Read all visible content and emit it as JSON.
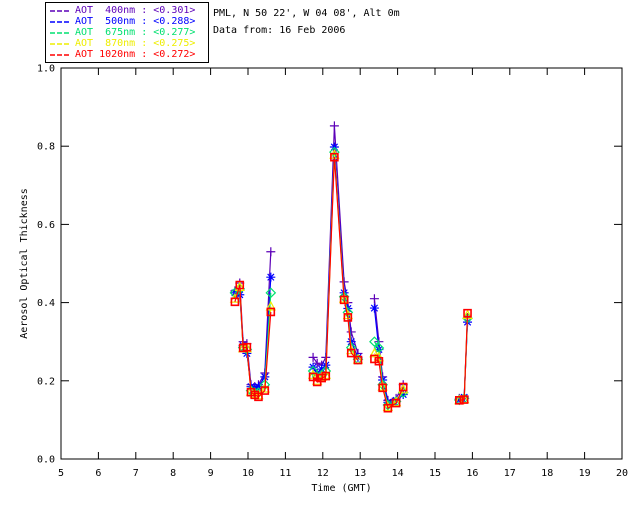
{
  "header": {
    "location": "PML, N 50 22', W 04 08', Alt 0m",
    "date": "Data from: 16 Feb 2006"
  },
  "legend": {
    "entries": [
      {
        "text": "AOT  400nm : <0.301>",
        "wavelength": "400nm",
        "mean": "<0.301>",
        "color": "#5c00b8"
      },
      {
        "text": "AOT  500nm : <0.288>",
        "wavelength": "500nm",
        "mean": "<0.288>",
        "color": "#0000ff"
      },
      {
        "text": "AOT  675nm : <0.277>",
        "wavelength": "675nm",
        "mean": "<0.277>",
        "color": "#00e070"
      },
      {
        "text": "AOT  870nm : <0.275>",
        "wavelength": "870nm",
        "mean": "<0.275>",
        "color": "#eeee00"
      },
      {
        "text": "AOT 1020nm : <0.272>",
        "wavelength": "1020nm",
        "mean": "<0.272>",
        "color": "#ff0000"
      }
    ]
  },
  "chart_data": {
    "type": "line",
    "title": "",
    "xlabel": "Time (GMT)",
    "ylabel": "Aerosol Optical Thickness",
    "xlim": [
      5,
      20
    ],
    "ylim": [
      0.0,
      1.0
    ],
    "x_ticks": [
      5,
      6,
      7,
      8,
      9,
      10,
      11,
      12,
      13,
      14,
      15,
      16,
      17,
      18,
      19,
      20
    ],
    "y_ticks": [
      0.0,
      0.2,
      0.4,
      0.6,
      0.8,
      1.0
    ],
    "grid": false,
    "legend_position": "outside-top-left",
    "x": [
      9.65,
      9.78,
      9.87,
      9.97,
      10.08,
      10.18,
      10.28,
      10.45,
      10.61,
      11.74,
      11.85,
      11.97,
      12.08,
      12.31,
      12.57,
      12.67,
      12.76,
      12.94,
      13.38,
      13.5,
      13.6,
      13.74,
      13.96,
      14.15,
      15.65,
      15.78,
      15.87
    ],
    "segments": [
      [
        0,
        8
      ],
      [
        9,
        17
      ],
      [
        18,
        23
      ],
      [
        24,
        26
      ]
    ],
    "series": [
      {
        "name": "AOT 400nm",
        "mean": 0.301,
        "color": "#5c00b8",
        "marker": "plus",
        "values": [
          0.43,
          0.45,
          0.3,
          0.295,
          0.19,
          0.185,
          0.19,
          0.22,
          0.53,
          0.26,
          0.245,
          0.24,
          0.26,
          0.852,
          0.453,
          0.4,
          0.325,
          0.27,
          0.41,
          0.3,
          0.21,
          0.15,
          0.155,
          0.19,
          0.155,
          0.16,
          0.36
        ]
      },
      {
        "name": "AOT 500nm",
        "mean": 0.288,
        "color": "#0000ff",
        "marker": "asterisk",
        "values": [
          0.425,
          0.42,
          0.29,
          0.27,
          0.185,
          0.18,
          0.185,
          0.21,
          0.465,
          0.235,
          0.22,
          0.23,
          0.24,
          0.798,
          0.425,
          0.385,
          0.3,
          0.26,
          0.386,
          0.28,
          0.202,
          0.145,
          0.15,
          0.165,
          0.152,
          0.158,
          0.35
        ]
      },
      {
        "name": "AOT 675nm",
        "mean": 0.277,
        "color": "#00e070",
        "marker": "diamond",
        "values": [
          0.425,
          0.435,
          0.285,
          0.28,
          0.175,
          0.17,
          0.17,
          0.19,
          0.425,
          0.225,
          0.21,
          0.215,
          0.225,
          0.785,
          0.415,
          0.375,
          0.285,
          0.255,
          0.3,
          0.284,
          0.19,
          0.138,
          0.147,
          0.17,
          0.151,
          0.155,
          0.36
        ]
      },
      {
        "name": "AOT 870nm",
        "mean": 0.275,
        "color": "#eeee00",
        "marker": "triangle",
        "values": [
          0.41,
          0.44,
          0.283,
          0.283,
          0.172,
          0.166,
          0.163,
          0.18,
          0.39,
          0.215,
          0.2,
          0.21,
          0.215,
          0.778,
          0.41,
          0.368,
          0.278,
          0.254,
          0.27,
          0.26,
          0.185,
          0.133,
          0.145,
          0.178,
          0.15,
          0.153,
          0.368
        ]
      },
      {
        "name": "AOT 1020nm",
        "mean": 0.272,
        "color": "#ff0000",
        "marker": "square",
        "values": [
          0.402,
          0.445,
          0.284,
          0.286,
          0.171,
          0.164,
          0.159,
          0.175,
          0.376,
          0.21,
          0.197,
          0.207,
          0.212,
          0.772,
          0.407,
          0.362,
          0.271,
          0.253,
          0.256,
          0.25,
          0.182,
          0.13,
          0.143,
          0.184,
          0.15,
          0.152,
          0.373
        ]
      }
    ]
  }
}
